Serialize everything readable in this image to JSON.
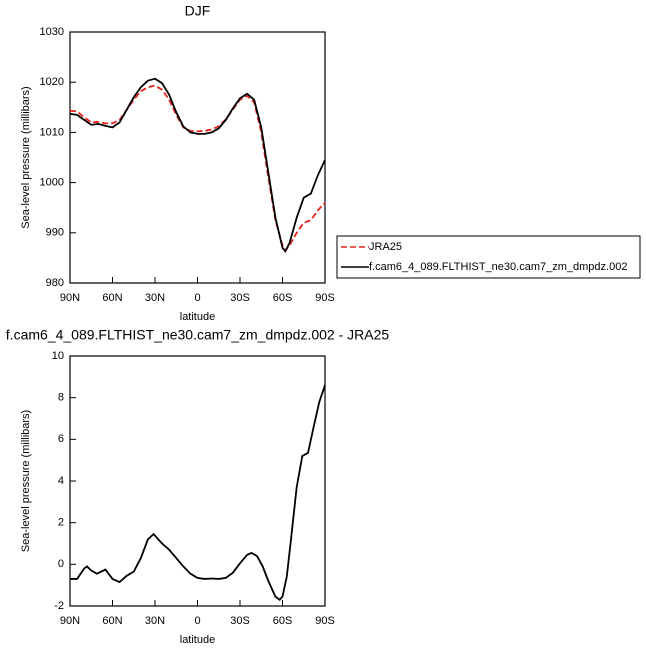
{
  "chart_data": [
    {
      "type": "line",
      "title": "DJF",
      "x_label": "latitude",
      "y_label": "Sea-level pressure (millibars)",
      "x": [
        90,
        85,
        80,
        75,
        70,
        65,
        60,
        55,
        50,
        45,
        40,
        35,
        30,
        25,
        20,
        15,
        10,
        5,
        0,
        -5,
        -10,
        -15,
        -20,
        -25,
        -30,
        -35,
        -40,
        -45,
        -50,
        -55,
        -60,
        -62,
        -65,
        -70,
        -75,
        -80,
        -85,
        -90
      ],
      "series": [
        {
          "name": "JRA25",
          "color": "#e8201c",
          "line_style": "dashed",
          "values": [
            1014.3,
            1014.2,
            1013,
            1012,
            1012.1,
            1011.8,
            1011.8,
            1012.5,
            1014.5,
            1016.5,
            1018.2,
            1019,
            1019.3,
            1018.5,
            1016.5,
            1013.5,
            1011,
            1010.3,
            1010.2,
            1010.3,
            1010.6,
            1011.2,
            1012.6,
            1014.6,
            1016.5,
            1017.3,
            1016,
            1010,
            1001,
            992.5,
            987.5,
            986.5,
            987.5,
            990,
            992,
            992.5,
            994.5,
            996
          ]
        },
        {
          "name": "f.cam6_4_089.FLTHIST_ne30.cam7_zm_dmpdz.002",
          "color": "#000000",
          "line_style": "solid",
          "values": [
            1013.7,
            1013.5,
            1012.5,
            1011.5,
            1011.7,
            1011.3,
            1011,
            1012,
            1014.5,
            1017,
            1019,
            1020.3,
            1020.7,
            1019.8,
            1017.5,
            1014,
            1011.2,
            1010,
            1009.7,
            1009.7,
            1010,
            1010.8,
            1012.5,
            1014.8,
            1016.8,
            1017.7,
            1016.5,
            1011,
            1002,
            993,
            987,
            986.3,
            988,
            993,
            997,
            997.8,
            1001.5,
            1004.5
          ]
        }
      ],
      "xlim": [
        90,
        -90
      ],
      "xticks": [
        {
          "value": 90,
          "label": "90N"
        },
        {
          "value": 60,
          "label": "60N"
        },
        {
          "value": 30,
          "label": "30N"
        },
        0,
        {
          "value": -30,
          "label": "30S"
        },
        {
          "value": -60,
          "label": "60S"
        },
        {
          "value": -90,
          "label": "90S"
        }
      ],
      "ylim": [
        980,
        1030
      ],
      "yticks": [
        980,
        990,
        1000,
        1010,
        1020,
        1030
      ],
      "legend": "outside-right"
    },
    {
      "type": "line",
      "title": "f.cam6_4_089.FLTHIST_ne30.cam7_zm_dmpdz.002 - JRA25",
      "x_label": "latitude",
      "y_label": "Sea-level pressure (millibars)",
      "x": [
        90,
        85,
        80,
        78,
        75,
        71,
        65,
        60,
        55,
        50,
        45,
        40,
        35,
        31,
        25,
        20,
        15,
        10,
        5,
        0,
        -5,
        -10,
        -15,
        -20,
        -25,
        -30,
        -35,
        -38,
        -42,
        -46,
        -50,
        -55,
        -58,
        -60,
        -63,
        -66,
        -70,
        -74,
        -78,
        -82,
        -86,
        -90
      ],
      "series": [
        {
          "color": "#000000",
          "line_style": "solid",
          "values": [
            -0.7,
            -0.7,
            -0.2,
            -0.1,
            -0.3,
            -0.45,
            -0.25,
            -0.7,
            -0.85,
            -0.55,
            -0.35,
            0.3,
            1.2,
            1.45,
            1.0,
            0.7,
            0.3,
            -0.1,
            -0.45,
            -0.65,
            -0.7,
            -0.68,
            -0.7,
            -0.65,
            -0.4,
            0.05,
            0.45,
            0.55,
            0.4,
            -0.1,
            -0.8,
            -1.55,
            -1.7,
            -1.55,
            -0.6,
            1.2,
            3.7,
            5.2,
            5.35,
            6.6,
            7.8,
            8.6
          ]
        }
      ],
      "xlim": [
        90,
        -90
      ],
      "xticks": [
        {
          "value": 90,
          "label": "90N"
        },
        {
          "value": 60,
          "label": "60N"
        },
        {
          "value": 30,
          "label": "30N"
        },
        0,
        {
          "value": -30,
          "label": "30S"
        },
        {
          "value": -60,
          "label": "60S"
        },
        {
          "value": -90,
          "label": "90S"
        }
      ],
      "ylim": [
        -2,
        10
      ],
      "yticks": [
        -2,
        0,
        2,
        4,
        6,
        8,
        10
      ]
    }
  ]
}
